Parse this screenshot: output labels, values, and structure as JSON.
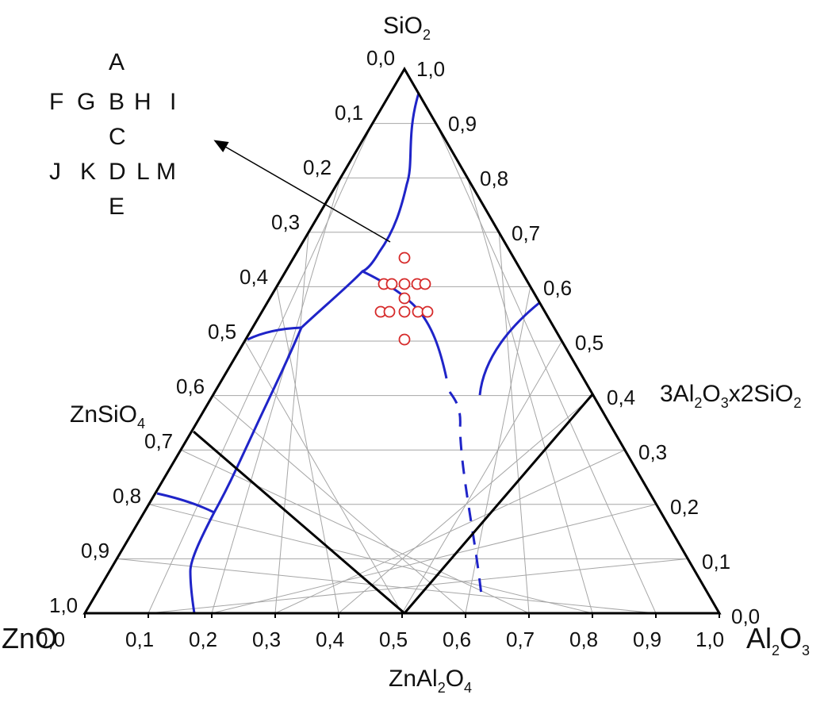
{
  "diagram": {
    "corners": {
      "top": "SiO2",
      "left": "ZnO",
      "right": "Al2O3"
    },
    "phases": {
      "zinc_silicate": "ZnSiO4",
      "mullite": "3Al2O3x2SiO2",
      "gahnite": "ZnAl2O4"
    },
    "axes": {
      "bottom_ticks": [
        "0,0",
        "0,1",
        "0,2",
        "0,3",
        "0,4",
        "0,5",
        "0,6",
        "0,7",
        "0,8",
        "0,9",
        "1,0"
      ],
      "left_ticks": [
        "0,0",
        "0,1",
        "0,2",
        "0,3",
        "0,4",
        "0,5",
        "0,6",
        "0,7",
        "0,8",
        "0,9",
        "1,0"
      ],
      "right_ticks": [
        "1,0",
        "0,9",
        "0,8",
        "0,7",
        "0,6",
        "0,5",
        "0,4",
        "0,3",
        "0,2",
        "0,1",
        "0,0"
      ]
    },
    "legend": {
      "rows": [
        [
          "",
          "",
          "A",
          "",
          ""
        ],
        [
          "F",
          "G",
          "B",
          "H",
          "I"
        ],
        [
          "",
          "",
          "C",
          "",
          ""
        ],
        [
          "J",
          "K",
          "D",
          "L",
          "M"
        ],
        [
          "",
          "",
          "E",
          "",
          ""
        ]
      ]
    },
    "colors": {
      "frame": "#000000",
      "grid": "#a6a6a6",
      "boundary": "#1f24c8",
      "sample": "#d62a2a"
    }
  }
}
